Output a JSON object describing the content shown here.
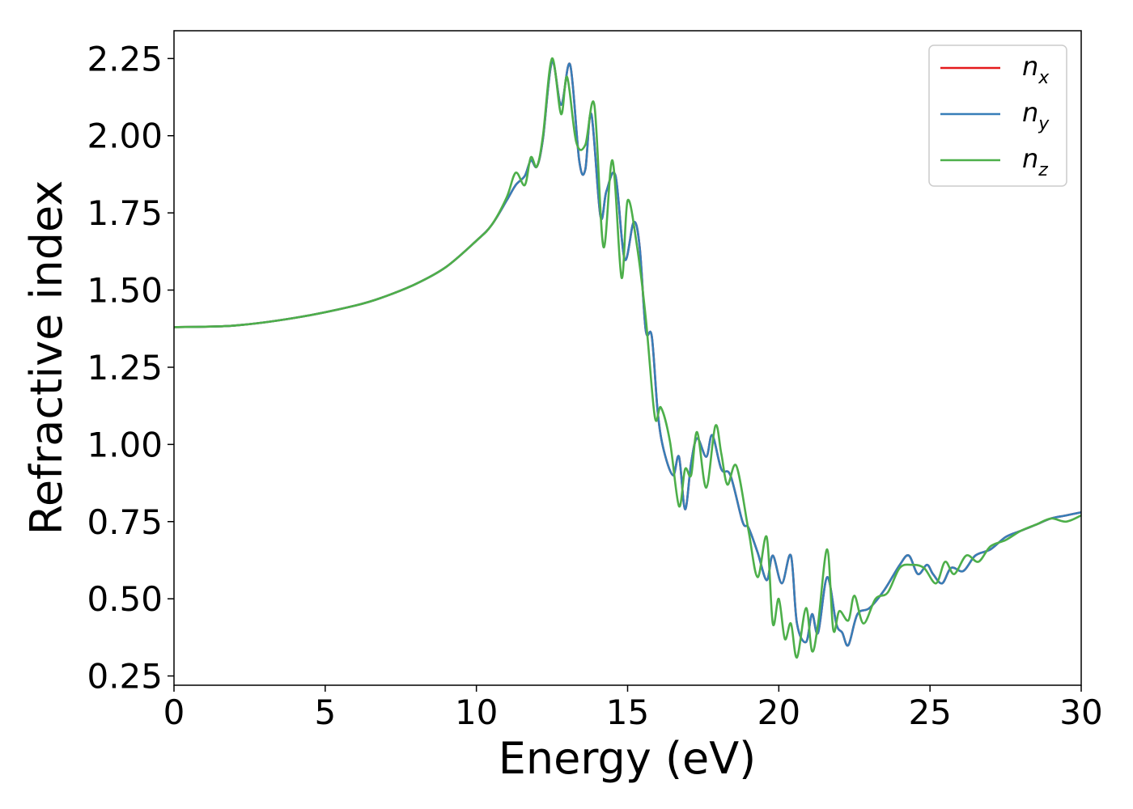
{
  "chart_data": {
    "type": "line",
    "title": "",
    "xlabel": "Energy (eV)",
    "ylabel": "Refractive index",
    "xlim": [
      0,
      30
    ],
    "ylim": [
      0.22,
      2.34
    ],
    "xticks": [
      0,
      5,
      10,
      15,
      20,
      25,
      30
    ],
    "xtick_labels": [
      "0",
      "5",
      "10",
      "15",
      "20",
      "25",
      "30"
    ],
    "yticks": [
      0.25,
      0.5,
      0.75,
      1.0,
      1.25,
      1.5,
      1.75,
      2.0,
      2.25
    ],
    "ytick_labels": [
      "0.25",
      "0.50",
      "0.75",
      "1.00",
      "1.25",
      "1.50",
      "1.75",
      "2.00",
      "2.25"
    ],
    "grid": false,
    "legend_position": "top-right",
    "series": [
      {
        "name": "n",
        "subscript": "x",
        "color": "#e41a1c",
        "x": [
          0,
          2,
          4,
          6,
          7,
          8,
          9,
          10,
          10.5,
          11,
          11.3,
          11.6,
          11.8,
          12.0,
          12.2,
          12.5,
          12.8,
          13.1,
          13.4,
          13.6,
          13.8,
          14.1,
          14.3,
          14.6,
          14.9,
          15.2,
          15.4,
          15.6,
          15.8,
          16.0,
          16.2,
          16.5,
          16.7,
          16.9,
          17.1,
          17.3,
          17.6,
          17.8,
          18.1,
          18.4,
          18.8,
          19.0,
          19.3,
          19.6,
          19.8,
          20.1,
          20.4,
          20.6,
          20.9,
          21.1,
          21.3,
          21.6,
          21.9,
          22.1,
          22.3,
          22.6,
          23.0,
          23.5,
          24.0,
          24.3,
          24.6,
          24.9,
          25.1,
          25.4,
          25.7,
          26.1,
          26.5,
          27.0,
          27.5,
          28.0,
          28.5,
          29.0,
          29.5,
          30.0
        ],
        "y": [
          1.38,
          1.385,
          1.41,
          1.45,
          1.48,
          1.52,
          1.575,
          1.66,
          1.71,
          1.79,
          1.84,
          1.87,
          1.92,
          1.9,
          1.99,
          2.24,
          2.1,
          2.23,
          1.92,
          1.89,
          2.07,
          1.74,
          1.82,
          1.87,
          1.6,
          1.72,
          1.64,
          1.37,
          1.35,
          1.1,
          0.98,
          0.9,
          0.96,
          0.79,
          0.94,
          1.02,
          0.96,
          1.03,
          0.92,
          0.9,
          0.75,
          0.73,
          0.65,
          0.56,
          0.64,
          0.55,
          0.64,
          0.42,
          0.36,
          0.45,
          0.39,
          0.57,
          0.42,
          0.39,
          0.35,
          0.45,
          0.47,
          0.53,
          0.61,
          0.64,
          0.58,
          0.61,
          0.58,
          0.55,
          0.6,
          0.59,
          0.64,
          0.66,
          0.7,
          0.72,
          0.74,
          0.76,
          0.77,
          0.78
        ]
      },
      {
        "name": "n",
        "subscript": "y",
        "color": "#377eb8",
        "x": [
          0,
          2,
          4,
          6,
          7,
          8,
          9,
          10,
          10.5,
          11,
          11.3,
          11.6,
          11.8,
          12.0,
          12.2,
          12.5,
          12.8,
          13.1,
          13.4,
          13.6,
          13.8,
          14.1,
          14.3,
          14.6,
          14.9,
          15.2,
          15.4,
          15.6,
          15.8,
          16.0,
          16.2,
          16.5,
          16.7,
          16.9,
          17.1,
          17.3,
          17.6,
          17.8,
          18.1,
          18.4,
          18.8,
          19.0,
          19.3,
          19.6,
          19.8,
          20.1,
          20.4,
          20.6,
          20.9,
          21.1,
          21.3,
          21.6,
          21.9,
          22.1,
          22.3,
          22.6,
          23.0,
          23.5,
          24.0,
          24.3,
          24.6,
          24.9,
          25.1,
          25.4,
          25.7,
          26.1,
          26.5,
          27.0,
          27.5,
          28.0,
          28.5,
          29.0,
          29.5,
          30.0
        ],
        "y": [
          1.38,
          1.385,
          1.41,
          1.45,
          1.48,
          1.52,
          1.575,
          1.66,
          1.71,
          1.79,
          1.84,
          1.87,
          1.92,
          1.9,
          1.99,
          2.24,
          2.1,
          2.23,
          1.92,
          1.89,
          2.07,
          1.74,
          1.82,
          1.87,
          1.6,
          1.72,
          1.64,
          1.37,
          1.35,
          1.1,
          0.98,
          0.9,
          0.96,
          0.79,
          0.94,
          1.02,
          0.96,
          1.03,
          0.92,
          0.9,
          0.75,
          0.73,
          0.65,
          0.56,
          0.64,
          0.55,
          0.64,
          0.42,
          0.36,
          0.45,
          0.39,
          0.57,
          0.42,
          0.39,
          0.35,
          0.45,
          0.47,
          0.53,
          0.61,
          0.64,
          0.58,
          0.61,
          0.58,
          0.55,
          0.6,
          0.59,
          0.64,
          0.66,
          0.7,
          0.72,
          0.74,
          0.76,
          0.77,
          0.78
        ]
      },
      {
        "name": "n",
        "subscript": "z",
        "color": "#4daf4a",
        "x": [
          0,
          2,
          4,
          6,
          7,
          8,
          9,
          10,
          10.5,
          11,
          11.3,
          11.6,
          11.8,
          12.0,
          12.2,
          12.5,
          12.8,
          13.0,
          13.3,
          13.6,
          13.9,
          14.2,
          14.5,
          14.8,
          15.0,
          15.3,
          15.6,
          15.9,
          16.1,
          16.4,
          16.7,
          16.9,
          17.1,
          17.3,
          17.6,
          17.9,
          18.1,
          18.3,
          18.6,
          19.0,
          19.3,
          19.6,
          19.8,
          20.0,
          20.2,
          20.4,
          20.6,
          20.9,
          21.1,
          21.3,
          21.6,
          21.8,
          22.0,
          22.3,
          22.5,
          22.8,
          23.2,
          23.6,
          24.0,
          24.4,
          24.8,
          25.2,
          25.5,
          25.8,
          26.2,
          26.6,
          27.0,
          27.5,
          28.0,
          28.5,
          29.0,
          29.5,
          30.0
        ],
        "y": [
          1.38,
          1.385,
          1.41,
          1.45,
          1.48,
          1.52,
          1.575,
          1.66,
          1.71,
          1.8,
          1.88,
          1.84,
          1.93,
          1.9,
          2.0,
          2.25,
          2.07,
          2.19,
          1.98,
          1.97,
          2.1,
          1.64,
          1.92,
          1.54,
          1.79,
          1.65,
          1.41,
          1.09,
          1.12,
          1.01,
          0.8,
          0.92,
          0.9,
          1.04,
          0.86,
          1.06,
          0.97,
          0.87,
          0.93,
          0.72,
          0.57,
          0.7,
          0.42,
          0.5,
          0.37,
          0.42,
          0.31,
          0.47,
          0.33,
          0.42,
          0.66,
          0.4,
          0.46,
          0.43,
          0.51,
          0.42,
          0.5,
          0.52,
          0.6,
          0.61,
          0.6,
          0.55,
          0.62,
          0.58,
          0.64,
          0.62,
          0.67,
          0.69,
          0.72,
          0.74,
          0.76,
          0.75,
          0.77
        ]
      }
    ]
  }
}
